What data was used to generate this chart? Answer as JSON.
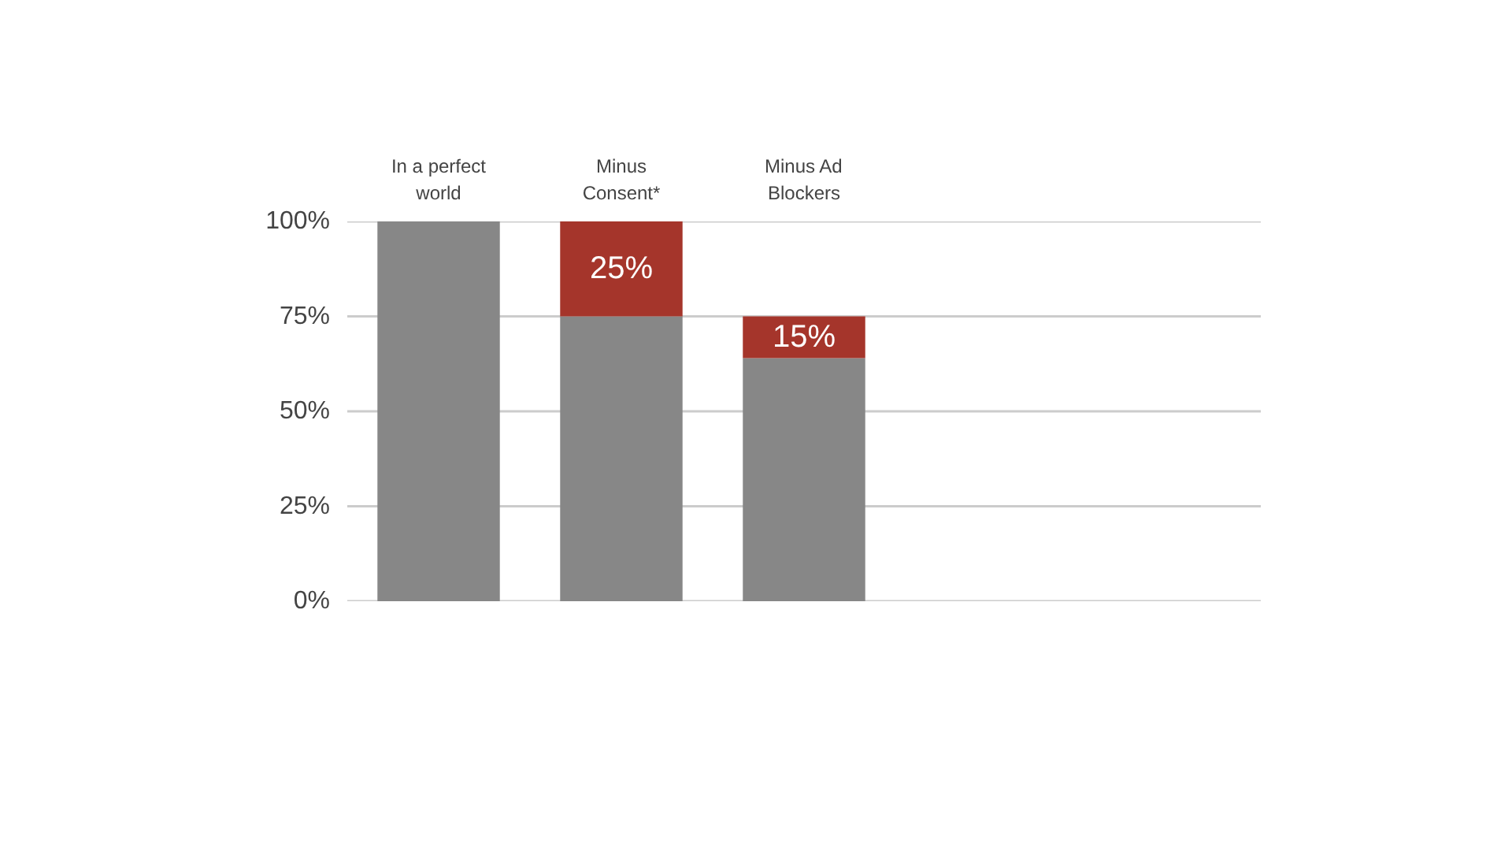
{
  "chart_data": {
    "type": "bar",
    "stacked": true,
    "categories": [
      "In a perfect world",
      "Minus Consent*",
      "Minus Ad Blockers",
      null,
      null
    ],
    "series": [
      {
        "color": "#878787",
        "values": [
          100,
          75,
          64,
          null,
          null
        ]
      },
      {
        "color": "#a5352b",
        "values": [
          null,
          25,
          11,
          null,
          null
        ]
      }
    ],
    "annotations": [
      "25%",
      "15%"
    ],
    "ylim": [
      0,
      100
    ],
    "yticks": [
      {
        "value": 0,
        "label": "0%"
      },
      {
        "value": 25,
        "label": "25%"
      },
      {
        "value": 50,
        "label": "50%"
      },
      {
        "value": 75,
        "label": "75%"
      },
      {
        "value": 100,
        "label": "100%"
      }
    ],
    "grid": "y"
  }
}
